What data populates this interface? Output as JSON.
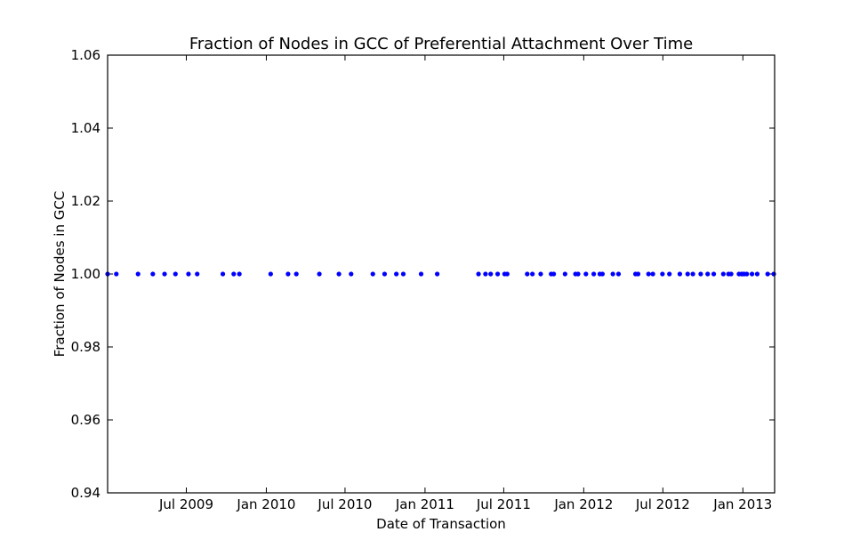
{
  "chart_data": {
    "type": "scatter",
    "title": "Fraction of Nodes in GCC of Preferential Attachment Over Time",
    "xlabel": "Date of Transaction",
    "ylabel": "Fraction of Nodes in GCC",
    "xlim": [
      "2009-01-01",
      "2013-03-15"
    ],
    "ylim": [
      0.94,
      1.06
    ],
    "x_ticks": [
      {
        "value": "2009-07-01",
        "label": "Jul 2009"
      },
      {
        "value": "2010-01-01",
        "label": "Jan 2010"
      },
      {
        "value": "2010-07-01",
        "label": "Jul 2010"
      },
      {
        "value": "2011-01-01",
        "label": "Jan 2011"
      },
      {
        "value": "2011-07-01",
        "label": "Jul 2011"
      },
      {
        "value": "2012-01-01",
        "label": "Jan 2012"
      },
      {
        "value": "2012-07-01",
        "label": "Jul 2012"
      },
      {
        "value": "2013-01-01",
        "label": "Jan 2013"
      }
    ],
    "y_ticks": [
      {
        "value": 0.94,
        "label": "0.94"
      },
      {
        "value": 0.96,
        "label": "0.96"
      },
      {
        "value": 0.98,
        "label": "0.98"
      },
      {
        "value": 1.0,
        "label": "1.00"
      },
      {
        "value": 1.02,
        "label": "1.02"
      },
      {
        "value": 1.04,
        "label": "1.04"
      },
      {
        "value": 1.06,
        "label": "1.06"
      }
    ],
    "grid": false,
    "legend": "none",
    "marker_color": "#0000ff",
    "series": [
      {
        "x": [
          "2009-01-01",
          "2009-01-21",
          "2009-03-12",
          "2009-04-15",
          "2009-05-12",
          "2009-06-06",
          "2009-07-06",
          "2009-07-26",
          "2009-09-23",
          "2009-10-18",
          "2009-10-31",
          "2010-01-11",
          "2010-02-20",
          "2010-03-11",
          "2010-05-03",
          "2010-06-17",
          "2010-07-15",
          "2010-09-03",
          "2010-09-30",
          "2010-10-27",
          "2010-11-12",
          "2010-12-23",
          "2011-01-29",
          "2011-05-04",
          "2011-05-20",
          "2011-06-01",
          "2011-06-17",
          "2011-07-03",
          "2011-07-09",
          "2011-08-24",
          "2011-09-05",
          "2011-09-24",
          "2011-10-18",
          "2011-10-24",
          "2011-11-19",
          "2011-12-13",
          "2011-12-19",
          "2012-01-06",
          "2012-01-24",
          "2012-02-07",
          "2012-02-13",
          "2012-03-08",
          "2012-03-21",
          "2012-04-29",
          "2012-05-05",
          "2012-05-29",
          "2012-06-08",
          "2012-06-30",
          "2012-07-16",
          "2012-08-09",
          "2012-08-27",
          "2012-09-08",
          "2012-09-26",
          "2012-10-12",
          "2012-10-26",
          "2012-11-17",
          "2012-11-29",
          "2012-12-05",
          "2012-12-29",
          "2013-01-04",
          "2013-01-10",
          "2013-02-03",
          "2013-02-27",
          "2013-03-13",
          "2013-01-22",
          "2012-12-31",
          "2012-12-23"
        ],
        "y": [
          1.0,
          1.0,
          1.0,
          1.0,
          1.0,
          1.0,
          1.0,
          1.0,
          1.0,
          1.0,
          1.0,
          1.0,
          1.0,
          1.0,
          1.0,
          1.0,
          1.0,
          1.0,
          1.0,
          1.0,
          1.0,
          1.0,
          1.0,
          1.0,
          1.0,
          1.0,
          1.0,
          1.0,
          1.0,
          1.0,
          1.0,
          1.0,
          1.0,
          1.0,
          1.0,
          1.0,
          1.0,
          1.0,
          1.0,
          1.0,
          1.0,
          1.0,
          1.0,
          1.0,
          1.0,
          1.0,
          1.0,
          1.0,
          1.0,
          1.0,
          1.0,
          1.0,
          1.0,
          1.0,
          1.0,
          1.0,
          1.0,
          1.0,
          1.0,
          1.0,
          1.0,
          1.0,
          1.0,
          1.0,
          1.0,
          1.0,
          1.0
        ]
      }
    ]
  }
}
